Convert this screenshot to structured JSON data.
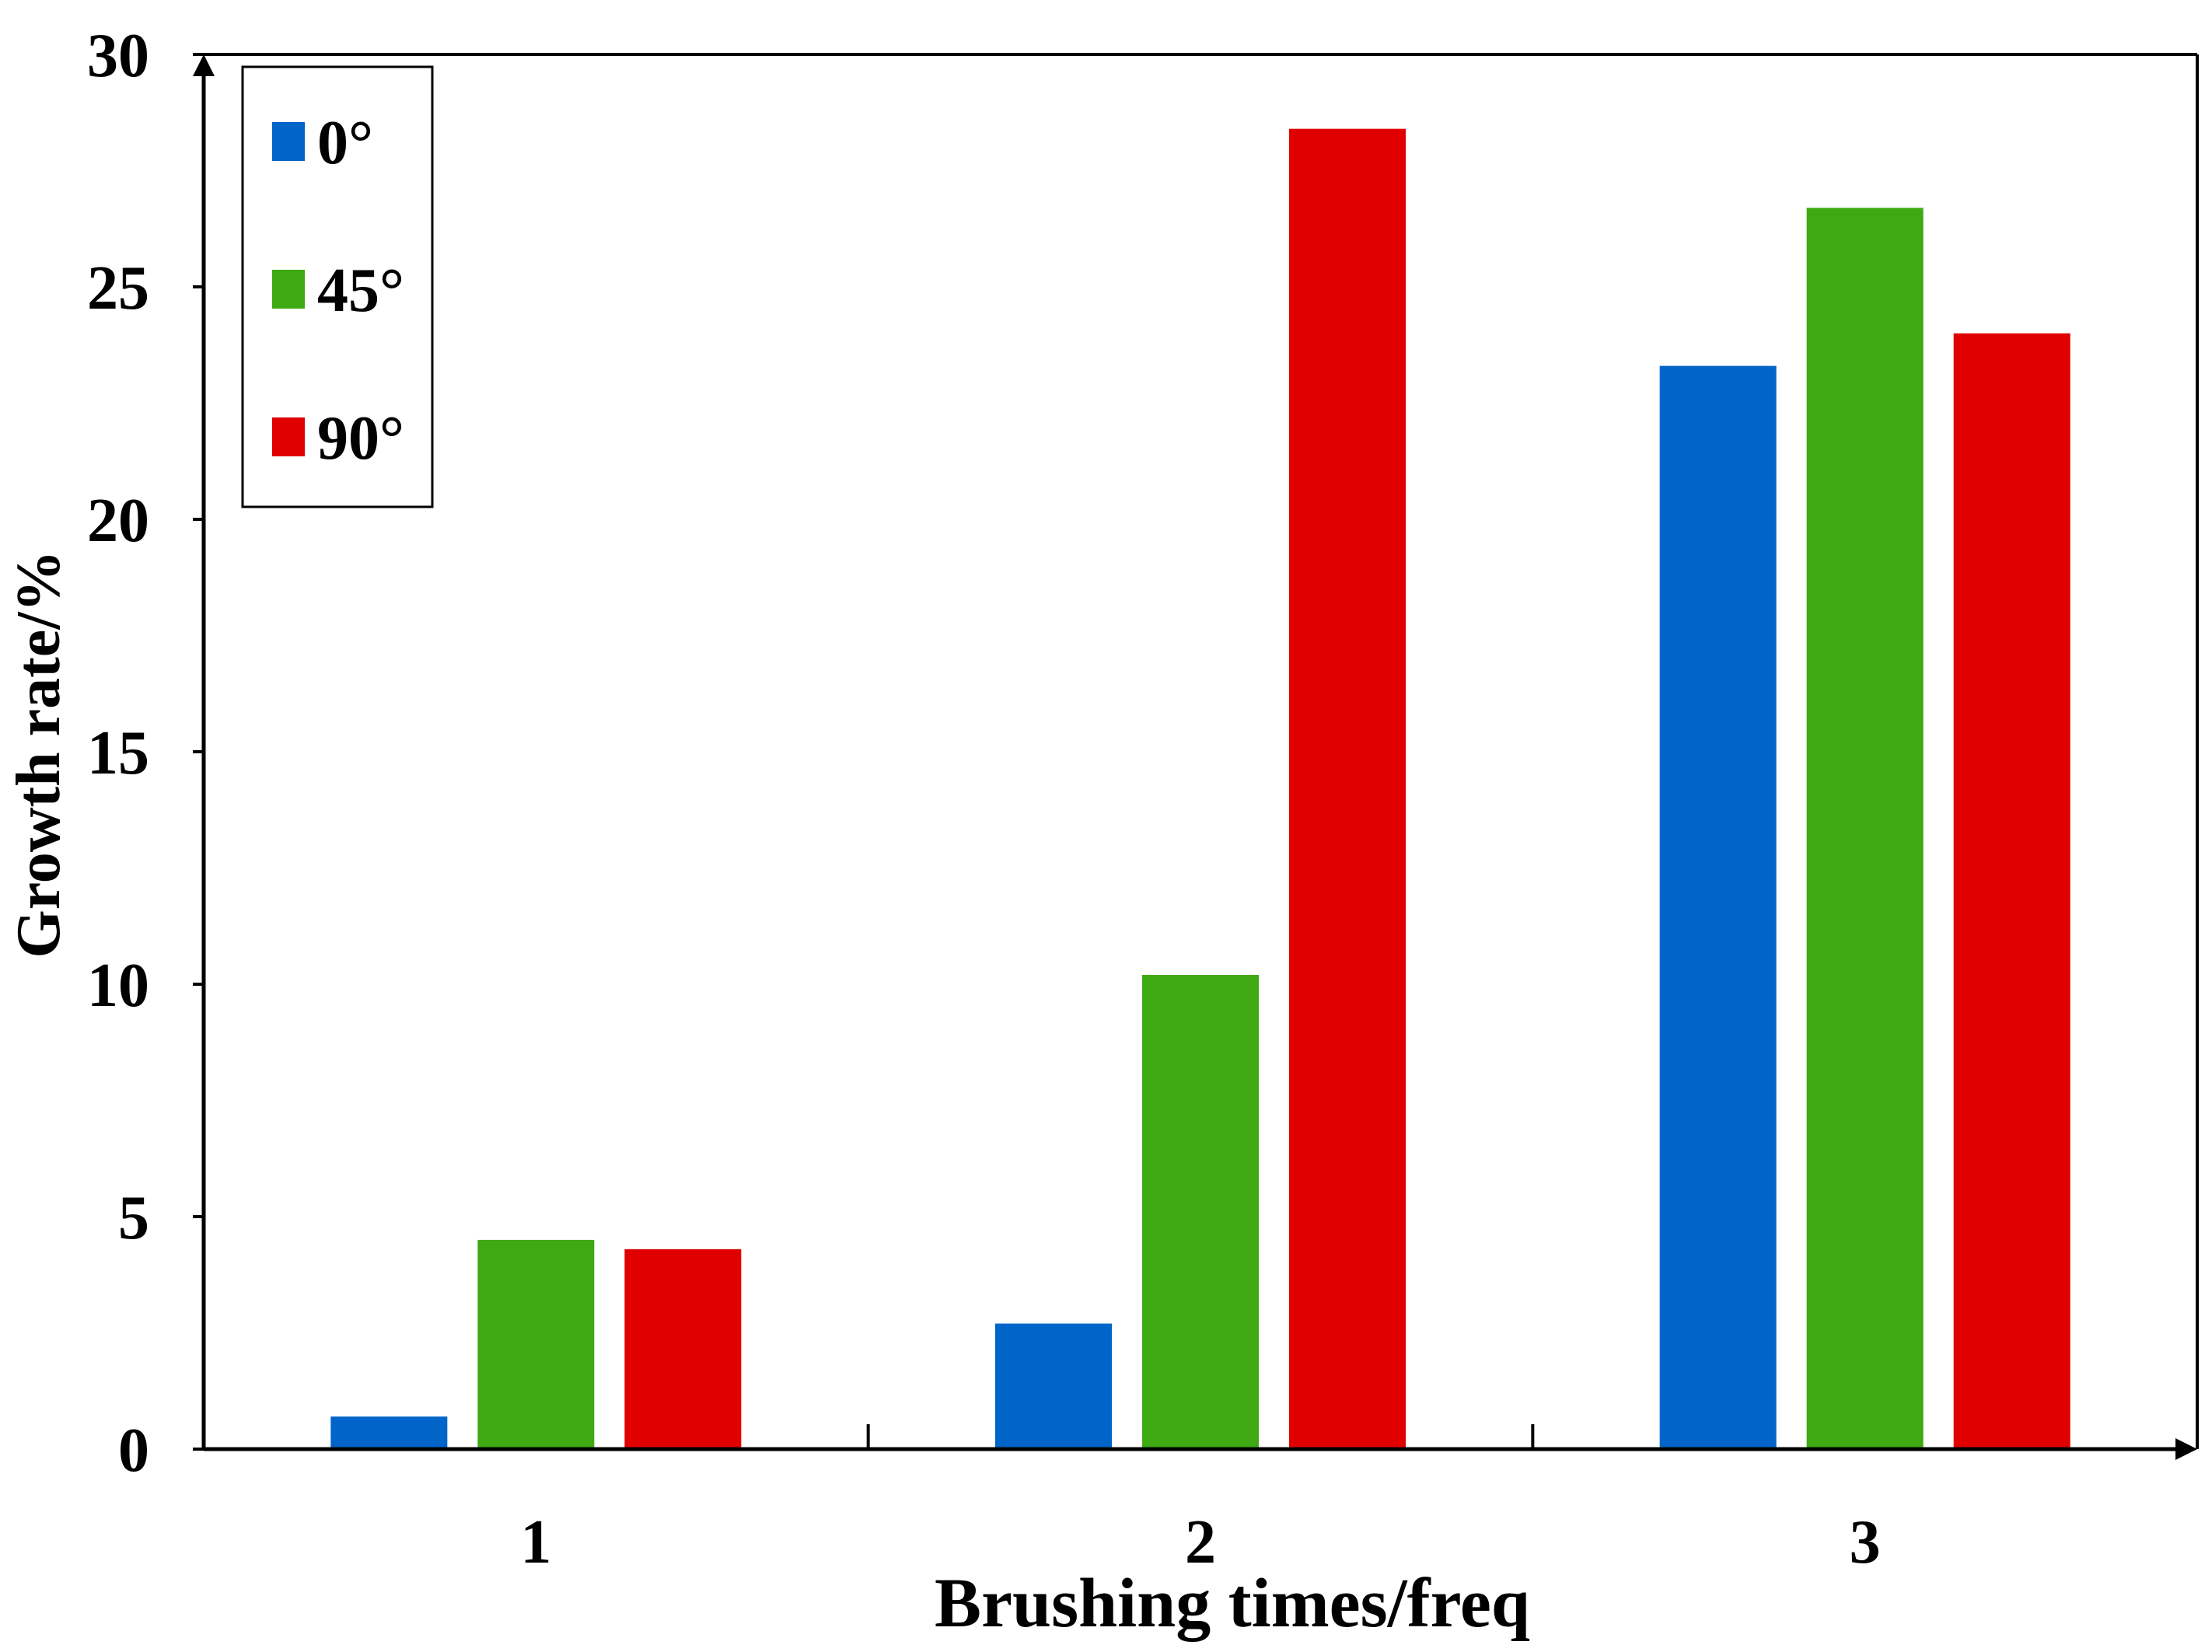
{
  "chart_data": {
    "type": "bar",
    "title": "",
    "xlabel": "Brushing times/freq",
    "ylabel": "Growth rate/%",
    "categories": [
      "1",
      "2",
      "3"
    ],
    "ylim": [
      0,
      30
    ],
    "yticks": [
      0,
      5,
      10,
      15,
      20,
      25,
      30
    ],
    "ytick_labels": [
      "0",
      "5",
      "10",
      "15",
      "20",
      "25",
      "30"
    ],
    "grid": false,
    "legend_position": "top-left",
    "series": [
      {
        "name": "0°",
        "color": "#0064c8",
        "values": [
          0.7,
          2.7,
          23.3
        ]
      },
      {
        "name": "45°",
        "color": "#3fa914",
        "values": [
          4.5,
          10.2,
          26.7
        ]
      },
      {
        "name": "90°",
        "color": "#e00000",
        "values": [
          4.3,
          28.4,
          24.0
        ]
      }
    ]
  }
}
